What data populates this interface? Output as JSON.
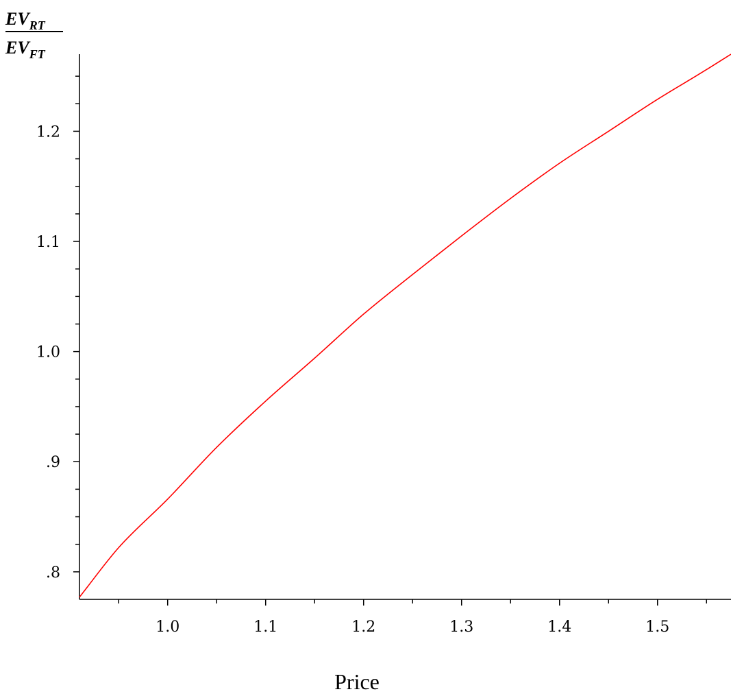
{
  "chart_data": {
    "type": "line",
    "title": "",
    "xlabel": "Price",
    "ylabel": {
      "numerator_main": "EV",
      "numerator_sub": "RT",
      "denominator_main": "EV",
      "denominator_sub": "FT"
    },
    "xlim": [
      0.91,
      1.575
    ],
    "ylim": [
      0.775,
      1.27
    ],
    "x_ticks_major": [
      1.0,
      1.1,
      1.2,
      1.3,
      1.4,
      1.5
    ],
    "x_tick_labels": [
      "1.0",
      "1.1",
      "1.2",
      "1.3",
      "1.4",
      "1.5"
    ],
    "y_ticks_major": [
      0.8,
      0.9,
      1.0,
      1.1,
      1.2
    ],
    "y_tick_labels": [
      ".8",
      ".9",
      "1.0",
      "1.1",
      "1.2"
    ],
    "grid": false,
    "legend": "none",
    "series": [
      {
        "color": "#ff0000",
        "x": [
          0.91,
          0.95,
          1.0,
          1.05,
          1.1,
          1.15,
          1.2,
          1.25,
          1.3,
          1.35,
          1.4,
          1.45,
          1.5,
          1.55,
          1.575
        ],
        "y": [
          0.777,
          0.822,
          0.866,
          0.913,
          0.955,
          0.994,
          1.034,
          1.07,
          1.105,
          1.139,
          1.171,
          1.2,
          1.229,
          1.256,
          1.27
        ]
      }
    ]
  }
}
